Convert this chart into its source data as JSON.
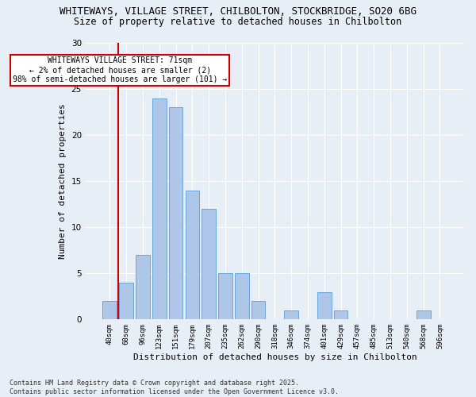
{
  "title_line1": "WHITEWAYS, VILLAGE STREET, CHILBOLTON, STOCKBRIDGE, SO20 6BG",
  "title_line2": "Size of property relative to detached houses in Chilbolton",
  "categories": [
    "40sqm",
    "68sqm",
    "96sqm",
    "123sqm",
    "151sqm",
    "179sqm",
    "207sqm",
    "235sqm",
    "262sqm",
    "290sqm",
    "318sqm",
    "346sqm",
    "374sqm",
    "401sqm",
    "429sqm",
    "457sqm",
    "485sqm",
    "513sqm",
    "540sqm",
    "568sqm",
    "596sqm"
  ],
  "values": [
    2,
    4,
    7,
    24,
    23,
    14,
    12,
    5,
    5,
    2,
    0,
    1,
    0,
    3,
    1,
    0,
    0,
    0,
    0,
    1,
    0
  ],
  "bar_color": "#aec6e8",
  "bar_edge_color": "#5a9fd4",
  "ylabel": "Number of detached properties",
  "xlabel": "Distribution of detached houses by size in Chilbolton",
  "ylim": [
    0,
    30
  ],
  "yticks": [
    0,
    5,
    10,
    15,
    20,
    25,
    30
  ],
  "vline_index": 0.5,
  "vline_color": "#cc0000",
  "annotation_text": "WHITEWAYS VILLAGE STREET: 71sqm\n← 2% of detached houses are smaller (2)\n98% of semi-detached houses are larger (101) →",
  "footnote": "Contains HM Land Registry data © Crown copyright and database right 2025.\nContains public sector information licensed under the Open Government Licence v3.0.",
  "background_color": "#e8eef5",
  "grid_color": "#ffffff",
  "title_fontsize": 9,
  "axis_label_fontsize": 8,
  "tick_fontsize": 6.5,
  "annotation_fontsize": 7,
  "footnote_fontsize": 6
}
